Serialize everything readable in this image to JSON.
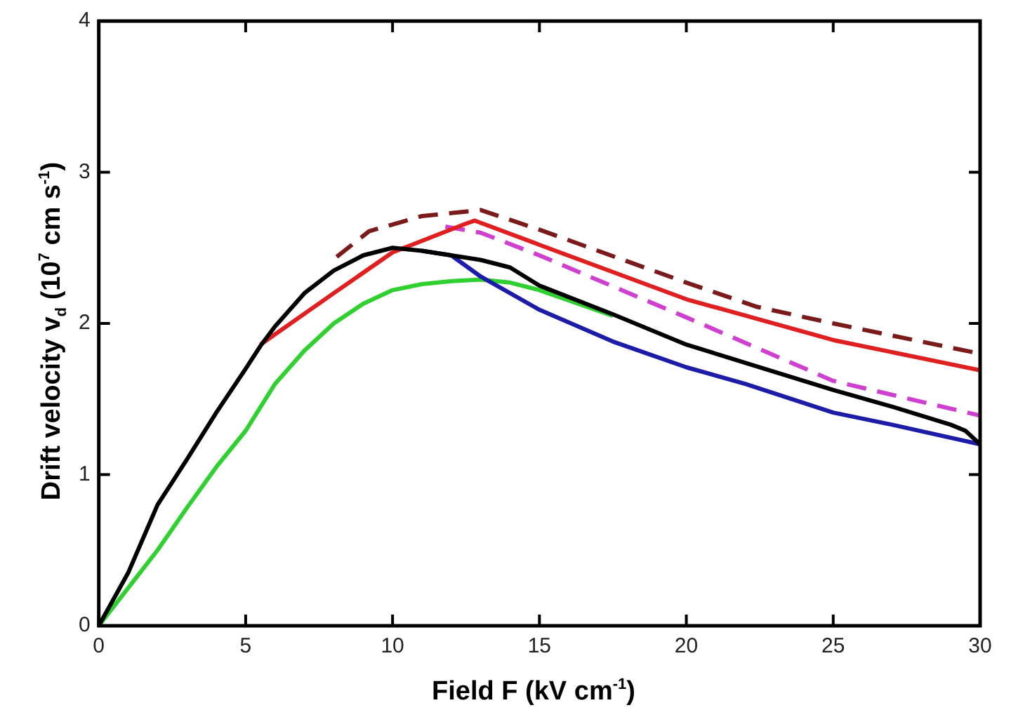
{
  "chart_data": {
    "type": "line",
    "xlabel": "Field F (kV cm$^{-1}$)",
    "ylabel": "Drift velocity v$_{d}$ (10$^{7}$ cm s$^{-1}$)",
    "xlim": [
      0,
      30
    ],
    "xticks": [
      0,
      5,
      10,
      15,
      20,
      25,
      30
    ],
    "ylim": [
      0,
      4
    ],
    "yticks": [
      0,
      1,
      2,
      3,
      4
    ],
    "grid": false,
    "legend": false,
    "marker": "none",
    "series": [
      {
        "color": "#000000",
        "line_style": "solid",
        "x": [
          0,
          1,
          2,
          3,
          4,
          5,
          5.5,
          6,
          7,
          8,
          9,
          10,
          11,
          12,
          13,
          14,
          15,
          17.5,
          20,
          22,
          25,
          27,
          29,
          29.5,
          30
        ],
        "values": [
          0,
          0.35,
          0.8,
          1.1,
          1.41,
          1.7,
          1.85,
          1.98,
          2.2,
          2.35,
          2.45,
          2.5,
          2.48,
          2.45,
          2.42,
          2.37,
          2.25,
          2.06,
          1.86,
          1.74,
          1.56,
          1.45,
          1.33,
          1.29,
          1.2
        ]
      },
      {
        "color": "#1c1ca8",
        "line_style": "solid",
        "x": [
          11,
          12,
          13,
          15,
          17.5,
          20,
          22,
          25,
          27,
          30
        ],
        "values": [
          2.48,
          2.45,
          2.31,
          2.09,
          1.88,
          1.71,
          1.6,
          1.41,
          1.33,
          1.2
        ]
      },
      {
        "color": "#e02020",
        "line_style": "solid",
        "x": [
          5.5,
          8,
          10,
          12.5,
          12.8,
          15,
          20,
          25,
          30
        ],
        "values": [
          1.86,
          2.2,
          2.47,
          2.66,
          2.68,
          2.52,
          2.16,
          1.89,
          1.69
        ]
      },
      {
        "color": "#d040d0",
        "line_style": "dashed",
        "x": [
          11.8,
          13,
          15,
          20,
          25,
          30
        ],
        "values": [
          2.64,
          2.6,
          2.45,
          2.04,
          1.62,
          1.39
        ]
      },
      {
        "color": "#7a1a1a",
        "line_style": "dashed",
        "x": [
          8.1,
          9.2,
          11,
          13,
          15,
          20,
          22.4,
          25,
          30
        ],
        "values": [
          2.44,
          2.61,
          2.71,
          2.75,
          2.62,
          2.27,
          2.11,
          2.0,
          1.8
        ]
      },
      {
        "color": "#30d030",
        "line_style": "solid",
        "x": [
          0,
          1,
          2,
          3,
          4,
          5,
          6,
          7,
          8,
          9,
          10,
          11,
          12,
          13,
          14,
          15,
          17.5
        ],
        "values": [
          0,
          0.25,
          0.5,
          0.78,
          1.05,
          1.29,
          1.6,
          1.82,
          2.0,
          2.13,
          2.22,
          2.26,
          2.28,
          2.29,
          2.27,
          2.22,
          2.05
        ]
      }
    ]
  }
}
